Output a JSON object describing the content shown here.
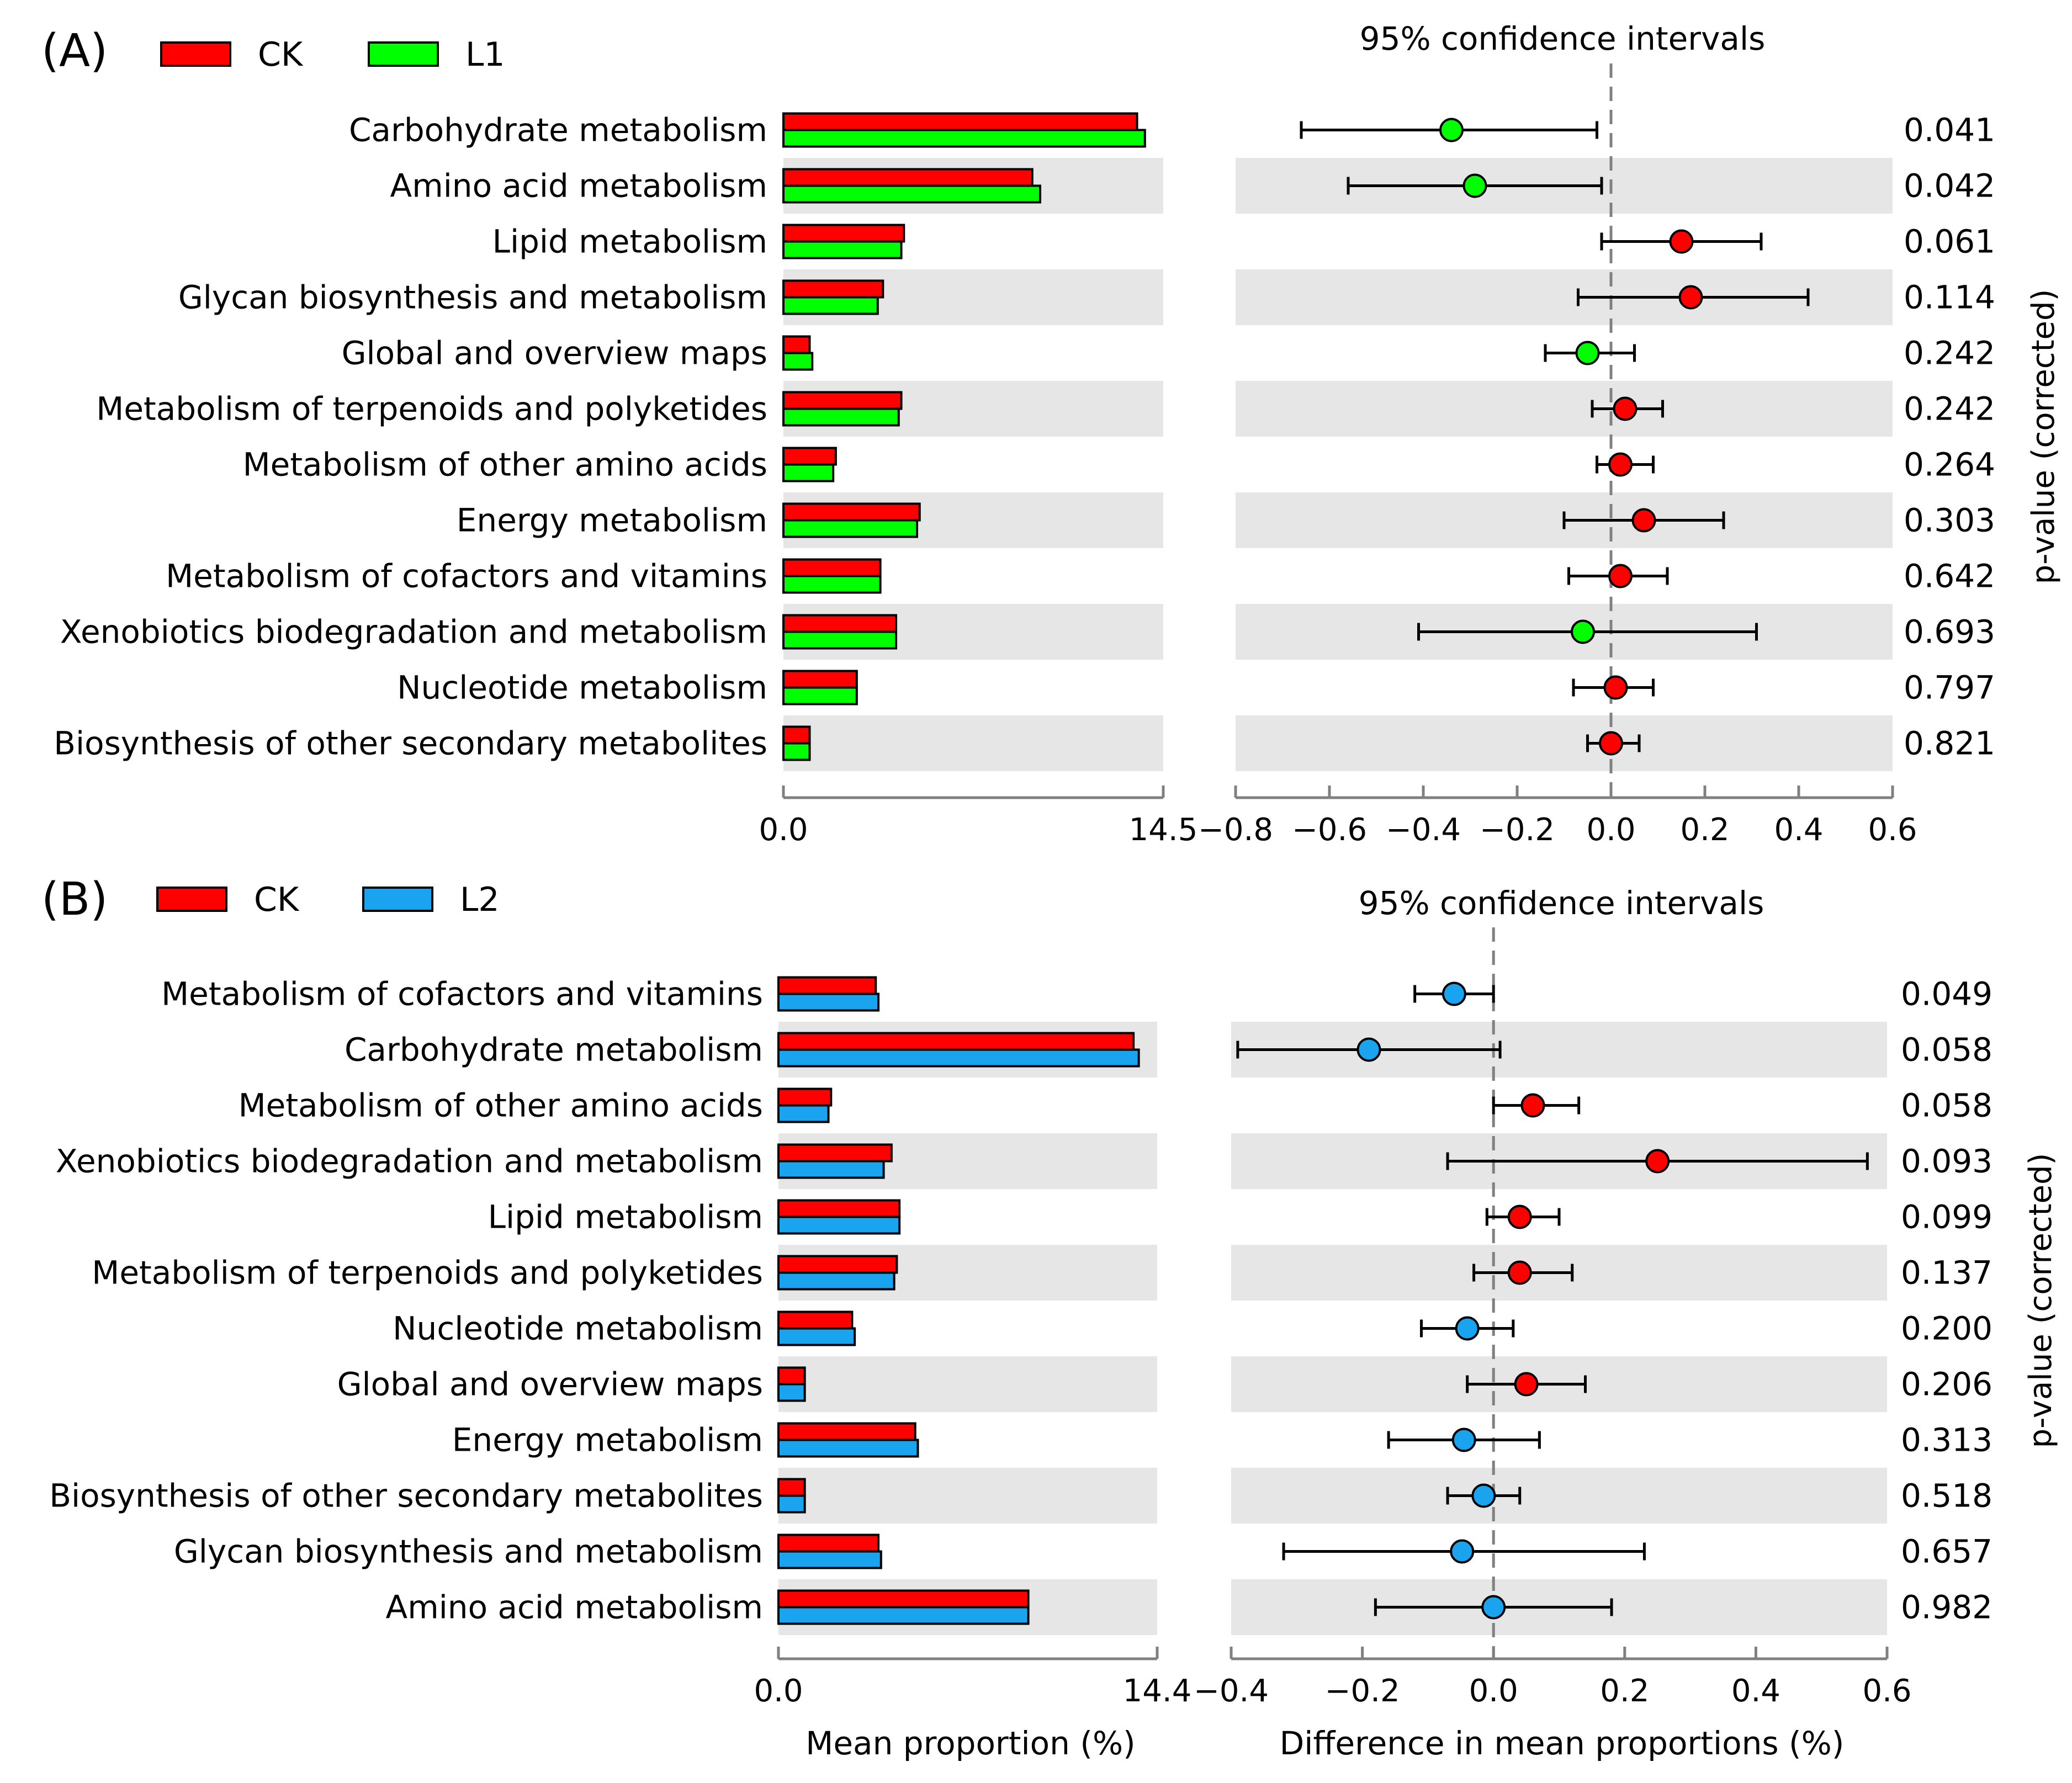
{
  "chart_data": [
    {
      "type": "extended_error_bar",
      "panel_label": "(A)",
      "legend": [
        {
          "name": "CK",
          "color": "#ff0000"
        },
        {
          "name": "L1",
          "color": "#00ff00"
        }
      ],
      "ci_title": "95% confidence intervals",
      "xlabel_left": "",
      "xlabel_right": "",
      "ylabel_right": "p-value (corrected)",
      "left_axis_range": [
        0,
        14.5
      ],
      "left_ticks": [
        "0.0",
        "14.5"
      ],
      "right_axis_range": [
        -0.8,
        0.6
      ],
      "right_ticks": [
        -0.8,
        -0.6,
        -0.4,
        -0.2,
        0.0,
        0.2,
        0.4,
        0.6
      ],
      "right_tick_labels": [
        "−0.8",
        "−0.6",
        "−0.4",
        "−0.2",
        "0.0",
        "0.2",
        "0.4",
        "0.6"
      ],
      "categories": [
        "Carbohydrate metabolism",
        "Amino acid metabolism",
        "Lipid metabolism",
        "Glycan biosynthesis and metabolism",
        "Global and overview maps",
        "Metabolism of terpenoids and polyketides",
        "Metabolism of other amino acids",
        "Energy metabolism",
        "Metabolism of cofactors and vitamins",
        "Xenobiotics biodegradation and metabolism",
        "Nucleotide metabolism",
        "Biosynthesis of other secondary metabolites"
      ],
      "series": [
        {
          "name": "CK",
          "values": [
            13.5,
            9.5,
            4.6,
            3.8,
            1.0,
            4.5,
            2.0,
            5.2,
            3.7,
            4.3,
            2.8,
            1.0
          ]
        },
        {
          "name": "L1",
          "values": [
            13.8,
            9.8,
            4.5,
            3.6,
            1.1,
            4.4,
            1.9,
            5.1,
            3.7,
            4.3,
            2.8,
            1.0
          ]
        }
      ],
      "difference": [
        -0.34,
        -0.29,
        0.15,
        0.17,
        -0.05,
        0.03,
        0.02,
        0.07,
        0.02,
        -0.06,
        0.01,
        0.0
      ],
      "ci_low": [
        -0.66,
        -0.56,
        -0.02,
        -0.07,
        -0.14,
        -0.04,
        -0.03,
        -0.1,
        -0.09,
        -0.41,
        -0.08,
        -0.05
      ],
      "ci_high": [
        -0.03,
        -0.02,
        0.32,
        0.42,
        0.05,
        0.11,
        0.09,
        0.24,
        0.12,
        0.31,
        0.09,
        0.06
      ],
      "favored": [
        "L1",
        "L1",
        "CK",
        "CK",
        "L1",
        "CK",
        "CK",
        "CK",
        "CK",
        "L1",
        "CK",
        "CK"
      ],
      "p_values": [
        "0.041",
        "0.042",
        "0.061",
        "0.114",
        "0.242",
        "0.242",
        "0.264",
        "0.303",
        "0.642",
        "0.693",
        "0.797",
        "0.821"
      ]
    },
    {
      "type": "extended_error_bar",
      "panel_label": "(B)",
      "legend": [
        {
          "name": "CK",
          "color": "#ff0000"
        },
        {
          "name": "L2",
          "color": "#1aa3ef"
        }
      ],
      "ci_title": "95% confidence intervals",
      "xlabel_left": "Mean proportion (%)",
      "xlabel_right": "Difference in mean proportions (%)",
      "ylabel_right": "p-value (corrected)",
      "left_axis_range": [
        0,
        14.4
      ],
      "left_ticks": [
        "0.0",
        "14.4"
      ],
      "right_axis_range": [
        -0.4,
        0.6
      ],
      "right_ticks": [
        -0.4,
        -0.2,
        0.0,
        0.2,
        0.4,
        0.6
      ],
      "right_tick_labels": [
        "−0.4",
        "−0.2",
        "0.0",
        "0.2",
        "0.4",
        "0.6"
      ],
      "categories": [
        "Metabolism of cofactors and vitamins",
        "Carbohydrate metabolism",
        "Metabolism of other amino acids",
        "Xenobiotics biodegradation and metabolism",
        "Lipid metabolism",
        "Metabolism of terpenoids and polyketides",
        "Nucleotide metabolism",
        "Global and overview maps",
        "Energy metabolism",
        "Biosynthesis of other secondary metabolites",
        "Glycan biosynthesis and metabolism",
        "Amino acid metabolism"
      ],
      "series": [
        {
          "name": "CK",
          "values": [
            3.7,
            13.5,
            2.0,
            4.3,
            4.6,
            4.5,
            2.8,
            1.0,
            5.2,
            1.0,
            3.8,
            9.5
          ]
        },
        {
          "name": "L2",
          "values": [
            3.8,
            13.7,
            1.9,
            4.0,
            4.6,
            4.4,
            2.9,
            1.0,
            5.3,
            1.0,
            3.9,
            9.5
          ]
        }
      ],
      "difference": [
        -0.06,
        -0.19,
        0.06,
        0.25,
        0.04,
        0.04,
        -0.04,
        0.05,
        -0.045,
        -0.015,
        -0.048,
        0.0
      ],
      "ci_low": [
        -0.12,
        -0.39,
        0.0,
        -0.07,
        -0.01,
        -0.03,
        -0.11,
        -0.04,
        -0.16,
        -0.07,
        -0.32,
        -0.18
      ],
      "ci_high": [
        0.0,
        0.01,
        0.13,
        0.57,
        0.1,
        0.12,
        0.03,
        0.14,
        0.07,
        0.04,
        0.23,
        0.18
      ],
      "favored": [
        "L2",
        "L2",
        "CK",
        "CK",
        "CK",
        "CK",
        "L2",
        "CK",
        "L2",
        "L2",
        "L2",
        "L2"
      ],
      "p_values": [
        "0.049",
        "0.058",
        "0.058",
        "0.093",
        "0.099",
        "0.137",
        "0.200",
        "0.206",
        "0.313",
        "0.518",
        "0.657",
        "0.982"
      ]
    }
  ]
}
